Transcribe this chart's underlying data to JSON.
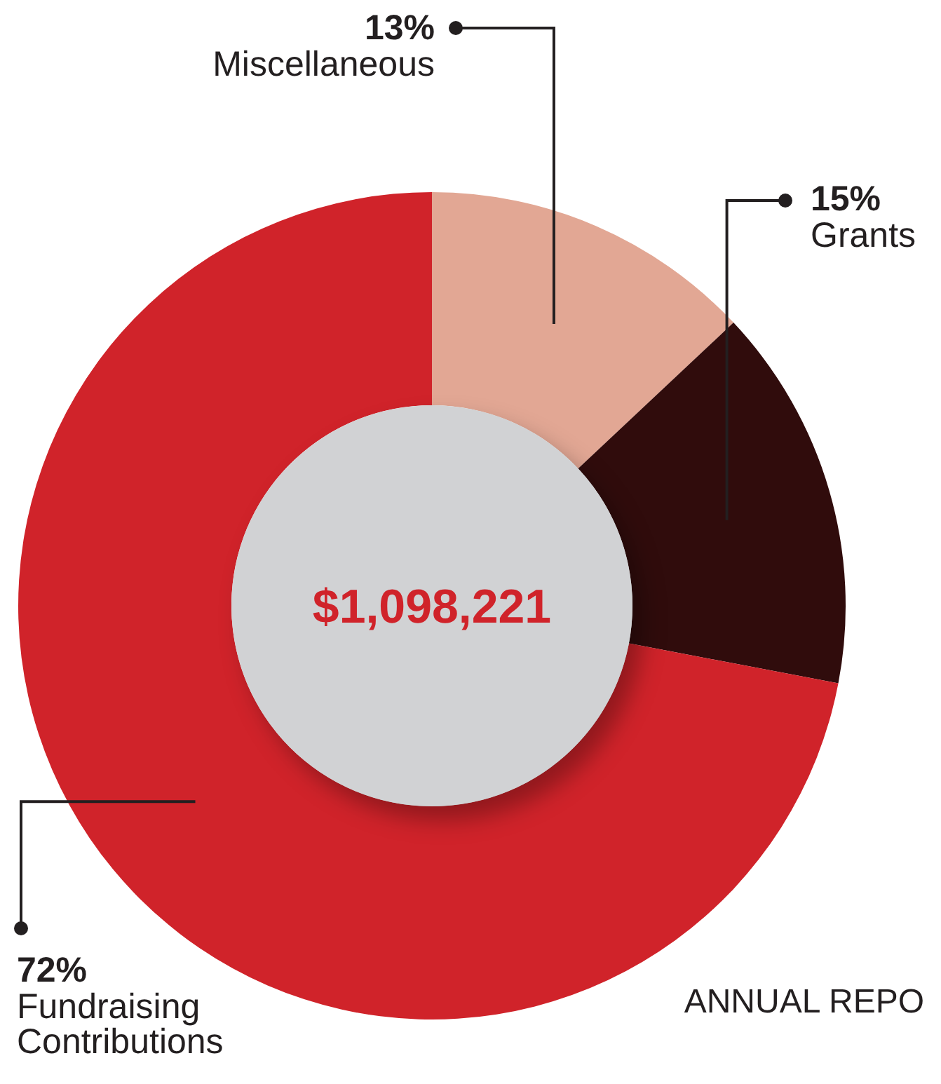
{
  "chart_data": {
    "type": "donut",
    "categories": [
      "Miscellaneous",
      "Grants",
      "Fundraising Contributions"
    ],
    "values": [
      13,
      15,
      72
    ],
    "colors": [
      "#e2a794",
      "#300c0c",
      "#d0232a"
    ],
    "value_labels": [
      "13%",
      "15%",
      "72%"
    ],
    "annotations": [
      "$1,098,221",
      "ANNUAL REPO"
    ]
  }
}
